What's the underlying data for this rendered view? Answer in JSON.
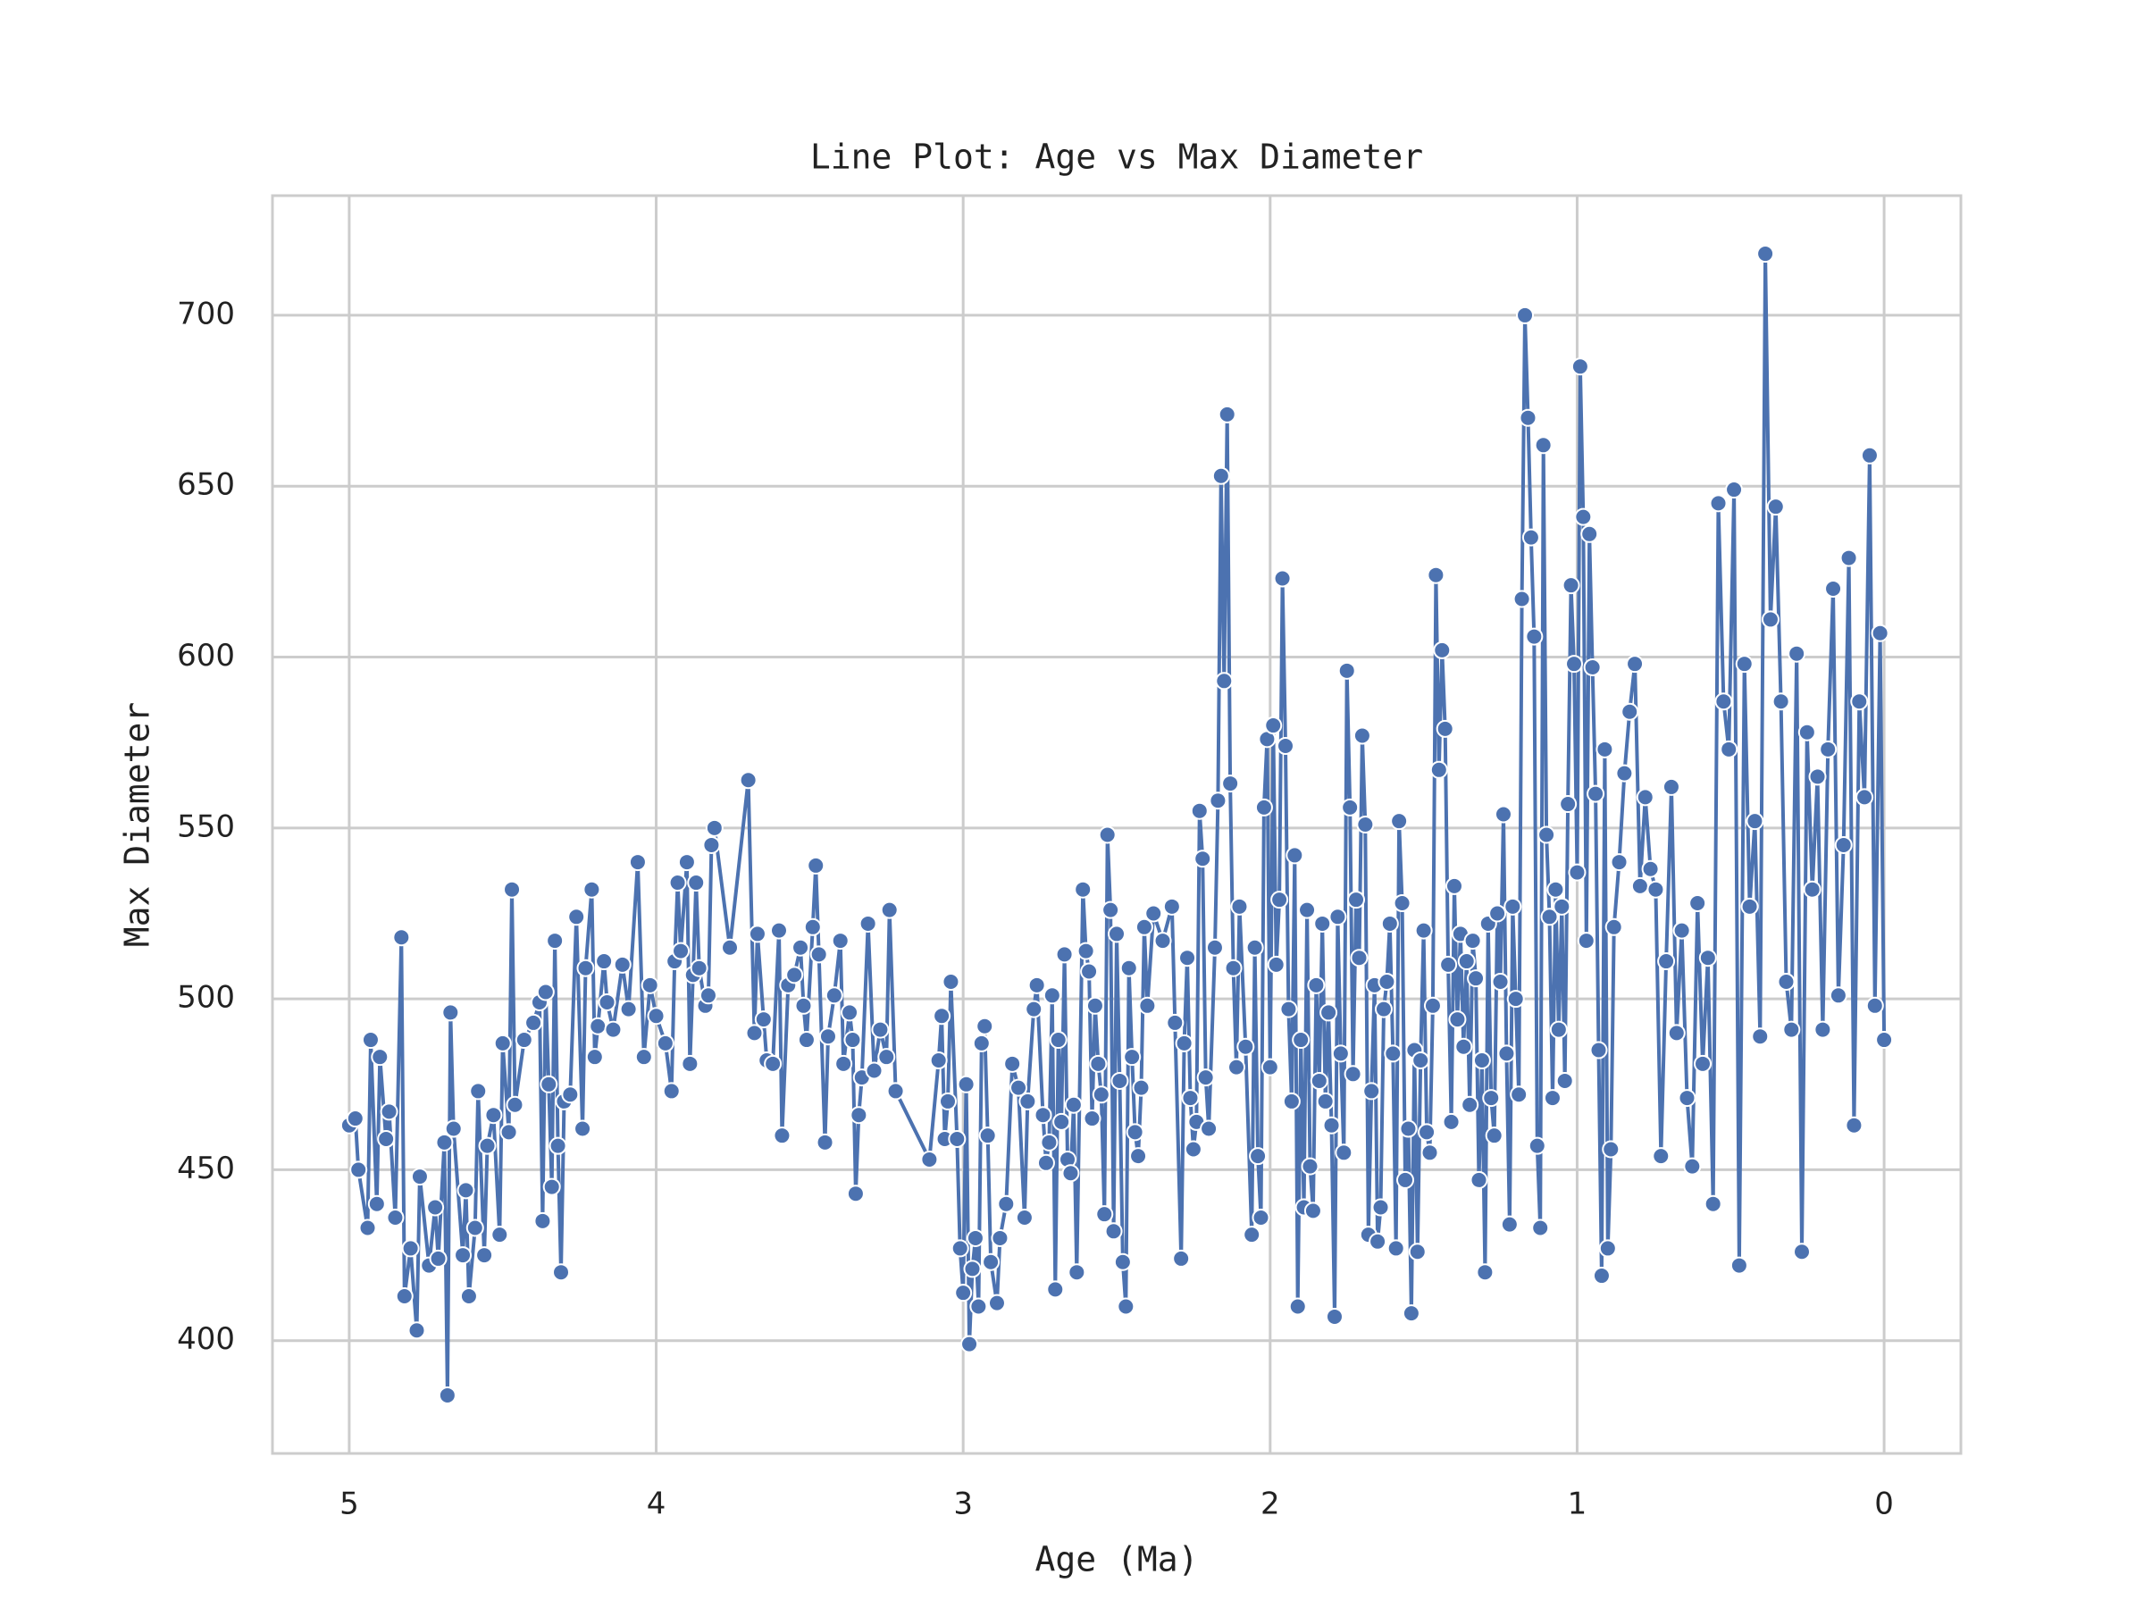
{
  "chart_data": {
    "type": "line",
    "title": "Line Plot: Age vs Max Diameter",
    "x_label": "Age (Ma)",
    "y_label": "Max Diameter",
    "color": "#4c72b0",
    "markers": true,
    "grid": true,
    "xlim": [
      5.25,
      -0.25
    ],
    "ylim": [
      367,
      735
    ],
    "xticks": [
      5,
      4,
      3,
      2,
      1,
      0
    ],
    "yticks": [
      400,
      450,
      500,
      550,
      600,
      650,
      700
    ],
    "x": [
      5.0,
      4.98,
      4.97,
      4.94,
      4.93,
      4.91,
      4.9,
      4.88,
      4.87,
      4.85,
      4.83,
      4.82,
      4.8,
      4.78,
      4.77,
      4.74,
      4.72,
      4.71,
      4.69,
      4.68,
      4.67,
      4.66,
      4.63,
      4.62,
      4.61,
      4.59,
      4.58,
      4.56,
      4.55,
      4.53,
      4.51,
      4.5,
      4.48,
      4.47,
      4.46,
      4.43,
      4.4,
      4.38,
      4.37,
      4.36,
      4.35,
      4.34,
      4.33,
      4.32,
      4.31,
      4.3,
      4.28,
      4.26,
      4.24,
      4.23,
      4.21,
      4.2,
      4.19,
      4.17,
      4.16,
      4.14,
      4.11,
      4.09,
      4.06,
      4.04,
      4.02,
      4.0,
      3.97,
      3.95,
      3.94,
      3.93,
      3.92,
      3.9,
      3.89,
      3.88,
      3.87,
      3.86,
      3.84,
      3.83,
      3.82,
      3.81,
      3.76,
      3.7,
      3.68,
      3.67,
      3.65,
      3.64,
      3.62,
      3.6,
      3.59,
      3.57,
      3.55,
      3.53,
      3.52,
      3.51,
      3.49,
      3.48,
      3.47,
      3.45,
      3.44,
      3.42,
      3.4,
      3.39,
      3.37,
      3.36,
      3.35,
      3.34,
      3.33,
      3.31,
      3.29,
      3.27,
      3.25,
      3.24,
      3.22,
      3.11,
      3.08,
      3.07,
      3.06,
      3.05,
      3.04,
      3.02,
      3.01,
      3.0,
      2.99,
      2.98,
      2.97,
      2.96,
      2.95,
      2.94,
      2.93,
      2.92,
      2.91,
      2.89,
      2.88,
      2.86,
      2.84,
      2.82,
      2.8,
      2.79,
      2.77,
      2.76,
      2.74,
      2.73,
      2.72,
      2.71,
      2.7,
      2.69,
      2.68,
      2.67,
      2.66,
      2.65,
      2.64,
      2.63,
      2.61,
      2.6,
      2.59,
      2.58,
      2.57,
      2.56,
      2.55,
      2.54,
      2.53,
      2.52,
      2.51,
      2.5,
      2.49,
      2.48,
      2.47,
      2.46,
      2.45,
      2.44,
      2.43,
      2.42,
      2.41,
      2.4,
      2.38,
      2.35,
      2.32,
      2.31,
      2.29,
      2.28,
      2.27,
      2.26,
      2.25,
      2.24,
      2.23,
      2.22,
      2.21,
      2.2,
      2.18,
      2.17,
      2.16,
      2.15,
      2.14,
      2.13,
      2.12,
      2.11,
      2.1,
      2.08,
      2.06,
      2.05,
      2.04,
      2.03,
      2.02,
      2.01,
      2.0,
      1.99,
      1.98,
      1.97,
      1.96,
      1.95,
      1.94,
      1.93,
      1.92,
      1.91,
      1.9,
      1.89,
      1.88,
      1.87,
      1.86,
      1.85,
      1.84,
      1.83,
      1.82,
      1.81,
      1.8,
      1.79,
      1.78,
      1.77,
      1.76,
      1.75,
      1.74,
      1.73,
      1.72,
      1.71,
      1.7,
      1.69,
      1.68,
      1.67,
      1.66,
      1.65,
      1.64,
      1.63,
      1.62,
      1.61,
      1.6,
      1.59,
      1.58,
      1.57,
      1.56,
      1.55,
      1.54,
      1.53,
      1.52,
      1.51,
      1.5,
      1.49,
      1.48,
      1.47,
      1.46,
      1.45,
      1.44,
      1.43,
      1.42,
      1.41,
      1.4,
      1.39,
      1.38,
      1.37,
      1.36,
      1.35,
      1.34,
      1.33,
      1.32,
      1.31,
      1.3,
      1.29,
      1.28,
      1.27,
      1.26,
      1.25,
      1.24,
      1.23,
      1.22,
      1.21,
      1.2,
      1.19,
      1.18,
      1.17,
      1.16,
      1.15,
      1.14,
      1.13,
      1.12,
      1.11,
      1.1,
      1.09,
      1.08,
      1.07,
      1.06,
      1.05,
      1.04,
      1.03,
      1.02,
      1.01,
      1.0,
      0.99,
      0.98,
      0.97,
      0.96,
      0.95,
      0.94,
      0.93,
      0.92,
      0.91,
      0.9,
      0.89,
      0.88,
      0.863,
      0.846,
      0.829,
      0.812,
      0.795,
      0.778,
      0.761,
      0.744,
      0.727,
      0.71,
      0.693,
      0.676,
      0.659,
      0.642,
      0.625,
      0.608,
      0.591,
      0.574,
      0.557,
      0.54,
      0.523,
      0.506,
      0.489,
      0.472,
      0.455,
      0.438,
      0.421,
      0.404,
      0.387,
      0.37,
      0.353,
      0.336,
      0.319,
      0.302,
      0.285,
      0.268,
      0.251,
      0.234,
      0.217,
      0.2,
      0.183,
      0.166,
      0.149,
      0.132,
      0.115,
      0.098,
      0.081,
      0.064,
      0.047,
      0.03,
      0.013,
      0.0
    ],
    "values": [
      463,
      465,
      450,
      433,
      488,
      440,
      483,
      459,
      467,
      436,
      518,
      413,
      427,
      403,
      448,
      422,
      439,
      424,
      458,
      384,
      496,
      462,
      425,
      444,
      413,
      433,
      473,
      425,
      457,
      466,
      431,
      487,
      461,
      532,
      469,
      488,
      493,
      499,
      435,
      502,
      475,
      445,
      517,
      457,
      420,
      470,
      472,
      524,
      462,
      509,
      532,
      483,
      492,
      511,
      499,
      491,
      510,
      497,
      540,
      483,
      504,
      495,
      487,
      473,
      511,
      534,
      514,
      540,
      481,
      507,
      534,
      509,
      498,
      501,
      545,
      550,
      515,
      564,
      490,
      519,
      494,
      482,
      481,
      520,
      460,
      504,
      507,
      515,
      498,
      488,
      521,
      539,
      513,
      458,
      489,
      501,
      517,
      481,
      496,
      488,
      443,
      466,
      477,
      522,
      479,
      491,
      483,
      526,
      473,
      453,
      482,
      495,
      459,
      470,
      505,
      459,
      427,
      414,
      475,
      399,
      421,
      430,
      410,
      487,
      492,
      460,
      423,
      411,
      430,
      440,
      481,
      474,
      436,
      470,
      497,
      504,
      466,
      452,
      458,
      501,
      415,
      488,
      464,
      513,
      453,
      449,
      469,
      420,
      532,
      514,
      508,
      465,
      498,
      481,
      472,
      437,
      548,
      526,
      432,
      519,
      476,
      423,
      410,
      509,
      483,
      461,
      454,
      474,
      521,
      498,
      525,
      517,
      527,
      493,
      424,
      487,
      512,
      471,
      456,
      464,
      555,
      541,
      477,
      462,
      515,
      558,
      653,
      593,
      671,
      563,
      509,
      480,
      527,
      486,
      431,
      515,
      454,
      436,
      556,
      576,
      480,
      580,
      510,
      529,
      623,
      574,
      497,
      470,
      542,
      410,
      488,
      439,
      526,
      451,
      438,
      504,
      476,
      522,
      470,
      496,
      463,
      407,
      524,
      484,
      455,
      596,
      556,
      478,
      529,
      512,
      577,
      551,
      431,
      473,
      504,
      429,
      439,
      497,
      505,
      522,
      484,
      427,
      552,
      528,
      447,
      462,
      408,
      485,
      426,
      482,
      520,
      461,
      455,
      498,
      624,
      567,
      602,
      579,
      510,
      464,
      533,
      494,
      519,
      486,
      511,
      469,
      517,
      506,
      447,
      482,
      420,
      522,
      471,
      460,
      525,
      505,
      554,
      484,
      434,
      527,
      500,
      472,
      617,
      700,
      670,
      635,
      606,
      457,
      433,
      662,
      548,
      524,
      471,
      532,
      491,
      527,
      476,
      557,
      621,
      598,
      537,
      685,
      641,
      517,
      636,
      597,
      560,
      485,
      419,
      573,
      427,
      456,
      521,
      540,
      566,
      584,
      598,
      533,
      559,
      538,
      532,
      454,
      511,
      562,
      490,
      520,
      471,
      451,
      528,
      481,
      512,
      440,
      645,
      587,
      573,
      649,
      422,
      598,
      527,
      552,
      489,
      718,
      611,
      644,
      587,
      505,
      491,
      601,
      426,
      578,
      532,
      565,
      491,
      573,
      620,
      501,
      545,
      629,
      463,
      587,
      559,
      659,
      498,
      607,
      488
    ]
  }
}
